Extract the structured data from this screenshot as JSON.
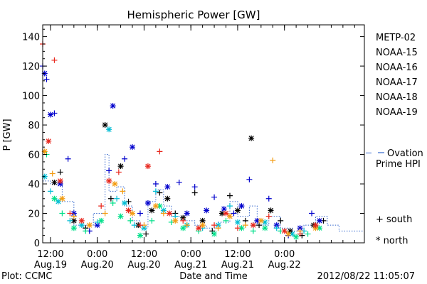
{
  "chart_data": {
    "type": "scatter",
    "title": "Hemispheric Power [GW]",
    "ylabel": "P [GW]",
    "xlabel": "Date and Time",
    "ylim": [
      0,
      148
    ],
    "xlim": [
      "2012-08-19T10:00",
      "2012-08-22T20:30"
    ],
    "yticks": [
      0,
      20,
      40,
      60,
      80,
      100,
      120,
      140
    ],
    "xticks": [
      {
        "time": "2012-08-19T12:00",
        "l1": "12:00",
        "l2": "Aug.19"
      },
      {
        "time": "2012-08-20T00:00",
        "l1": "0:00",
        "l2": "Aug.20"
      },
      {
        "time": "2012-08-20T12:00",
        "l1": "12:00",
        "l2": "Aug.20"
      },
      {
        "time": "2012-08-21T00:00",
        "l1": "0:00",
        "l2": "Aug.21"
      },
      {
        "time": "2012-08-21T12:00",
        "l1": "12:00",
        "l2": "Aug.21"
      },
      {
        "time": "2012-08-22T00:00",
        "l1": "0:00",
        "l2": "Aug.22"
      }
    ],
    "legend_position": "right",
    "series": [
      {
        "name": "METP-02",
        "color": "#000000",
        "points": [
          [
            "2012-08-19T13:00",
            41
          ],
          [
            "2012-08-19T14:30",
            48
          ],
          [
            "2012-08-19T18:00",
            15
          ],
          [
            "2012-08-19T21:00",
            10
          ],
          [
            "2012-08-20T02:00",
            80
          ],
          [
            "2012-08-20T03:30",
            30
          ],
          [
            "2012-08-20T06:00",
            52
          ],
          [
            "2012-08-20T08:00",
            28
          ],
          [
            "2012-08-20T10:30",
            12
          ],
          [
            "2012-08-20T12:30",
            6
          ],
          [
            "2012-08-20T14:00",
            22
          ],
          [
            "2012-08-20T16:00",
            34
          ],
          [
            "2012-08-20T18:00",
            30
          ],
          [
            "2012-08-20T20:00",
            20
          ],
          [
            "2012-08-20T22:00",
            17
          ],
          [
            "2012-08-21T01:00",
            34
          ],
          [
            "2012-08-21T03:00",
            15
          ],
          [
            "2012-08-21T05:30",
            8
          ],
          [
            "2012-08-21T08:00",
            20
          ],
          [
            "2012-08-21T10:00",
            32
          ],
          [
            "2012-08-21T12:00",
            22
          ],
          [
            "2012-08-21T14:00",
            15
          ],
          [
            "2012-08-21T15:30",
            71
          ],
          [
            "2012-08-21T17:30",
            12
          ],
          [
            "2012-08-21T20:30",
            22
          ],
          [
            "2012-08-21T23:00",
            15
          ],
          [
            "2012-08-22T01:30",
            8
          ],
          [
            "2012-08-22T04:30",
            5
          ],
          [
            "2012-08-22T07:30",
            12
          ],
          [
            "2012-08-22T10:00",
            15
          ]
        ]
      },
      {
        "name": "NOAA-15",
        "color": "#0000cc",
        "points": [
          [
            "2012-08-19T10:00",
            120
          ],
          [
            "2012-08-19T10:30",
            115
          ],
          [
            "2012-08-19T11:00",
            111
          ],
          [
            "2012-08-19T12:00",
            87
          ],
          [
            "2012-08-19T13:00",
            88
          ],
          [
            "2012-08-19T14:30",
            40
          ],
          [
            "2012-08-19T16:30",
            57
          ],
          [
            "2012-08-19T18:00",
            20
          ],
          [
            "2012-08-19T22:00",
            8
          ],
          [
            "2012-08-20T00:00",
            12
          ],
          [
            "2012-08-20T03:00",
            49
          ],
          [
            "2012-08-20T04:00",
            93
          ],
          [
            "2012-08-20T07:00",
            57
          ],
          [
            "2012-08-20T09:00",
            65
          ],
          [
            "2012-08-20T11:00",
            20
          ],
          [
            "2012-08-20T13:00",
            27
          ],
          [
            "2012-08-20T15:00",
            40
          ],
          [
            "2012-08-20T18:00",
            38
          ],
          [
            "2012-08-20T21:00",
            41
          ],
          [
            "2012-08-20T23:00",
            20
          ],
          [
            "2012-08-21T01:00",
            38
          ],
          [
            "2012-08-21T04:00",
            22
          ],
          [
            "2012-08-21T06:00",
            31
          ],
          [
            "2012-08-21T08:30",
            23
          ],
          [
            "2012-08-21T11:00",
            20
          ],
          [
            "2012-08-21T13:00",
            25
          ],
          [
            "2012-08-21T15:00",
            43
          ],
          [
            "2012-08-21T17:00",
            15
          ],
          [
            "2012-08-21T20:00",
            30
          ],
          [
            "2012-08-21T22:00",
            12
          ],
          [
            "2012-08-22T01:00",
            5
          ],
          [
            "2012-08-22T04:00",
            10
          ],
          [
            "2012-08-22T07:00",
            20
          ],
          [
            "2012-08-22T09:00",
            15
          ]
        ]
      },
      {
        "name": "NOAA-16",
        "color": "#00bcd4",
        "points": [
          [
            "2012-08-19T10:30",
            45
          ],
          [
            "2012-08-19T12:00",
            35
          ],
          [
            "2012-08-19T14:00",
            28
          ],
          [
            "2012-08-19T17:00",
            15
          ],
          [
            "2012-08-19T20:00",
            12
          ],
          [
            "2012-08-20T00:00",
            14
          ],
          [
            "2012-08-20T03:00",
            77
          ],
          [
            "2012-08-20T05:00",
            30
          ],
          [
            "2012-08-20T07:00",
            27
          ],
          [
            "2012-08-20T09:30",
            12
          ],
          [
            "2012-08-20T12:00",
            10
          ],
          [
            "2012-08-20T15:00",
            35
          ],
          [
            "2012-08-20T17:00",
            22
          ],
          [
            "2012-08-20T20:00",
            18
          ],
          [
            "2012-08-20T23:00",
            12
          ],
          [
            "2012-08-21T03:00",
            10
          ],
          [
            "2012-08-21T07:00",
            12
          ],
          [
            "2012-08-21T10:00",
            25
          ],
          [
            "2012-08-21T12:00",
            14
          ],
          [
            "2012-08-21T16:00",
            12
          ],
          [
            "2012-08-21T19:00",
            14
          ],
          [
            "2012-08-21T22:00",
            10
          ],
          [
            "2012-08-22T02:00",
            6
          ],
          [
            "2012-08-22T05:00",
            8
          ],
          [
            "2012-08-22T08:00",
            12
          ]
        ]
      },
      {
        "name": "NOAA-17",
        "color": "#00e08a",
        "points": [
          [
            "2012-08-19T11:00",
            60
          ],
          [
            "2012-08-19T13:00",
            30
          ],
          [
            "2012-08-19T15:00",
            20
          ],
          [
            "2012-08-19T18:00",
            10
          ],
          [
            "2012-08-19T21:00",
            8
          ],
          [
            "2012-08-20T01:00",
            15
          ],
          [
            "2012-08-20T04:00",
            27
          ],
          [
            "2012-08-20T06:00",
            18
          ],
          [
            "2012-08-20T08:30",
            15
          ],
          [
            "2012-08-20T11:00",
            5
          ],
          [
            "2012-08-20T14:00",
            15
          ],
          [
            "2012-08-20T16:00",
            25
          ],
          [
            "2012-08-20T19:00",
            14
          ],
          [
            "2012-08-20T22:00",
            10
          ],
          [
            "2012-08-21T02:00",
            8
          ],
          [
            "2012-08-21T06:00",
            6
          ],
          [
            "2012-08-21T09:00",
            15
          ],
          [
            "2012-08-21T13:00",
            10
          ],
          [
            "2012-08-21T16:00",
            8
          ],
          [
            "2012-08-21T19:00",
            10
          ],
          [
            "2012-08-21T23:00",
            8
          ],
          [
            "2012-08-22T03:00",
            4
          ],
          [
            "2012-08-22T06:00",
            6
          ],
          [
            "2012-08-22T09:00",
            10
          ]
        ]
      },
      {
        "name": "NOAA-18",
        "color": "#f39c12",
        "points": [
          [
            "2012-08-19T10:30",
            62
          ],
          [
            "2012-08-19T12:30",
            47
          ],
          [
            "2012-08-19T15:00",
            30
          ],
          [
            "2012-08-19T18:00",
            18
          ],
          [
            "2012-08-19T22:00",
            12
          ],
          [
            "2012-08-20T02:00",
            20
          ],
          [
            "2012-08-20T04:30",
            40
          ],
          [
            "2012-08-20T06:30",
            35
          ],
          [
            "2012-08-20T09:00",
            20
          ],
          [
            "2012-08-20T12:00",
            12
          ],
          [
            "2012-08-20T15:00",
            25
          ],
          [
            "2012-08-20T17:00",
            20
          ],
          [
            "2012-08-20T20:00",
            15
          ],
          [
            "2012-08-20T23:00",
            12
          ],
          [
            "2012-08-21T03:00",
            12
          ],
          [
            "2012-08-21T07:00",
            10
          ],
          [
            "2012-08-21T10:00",
            18
          ],
          [
            "2012-08-21T14:00",
            12
          ],
          [
            "2012-08-21T18:00",
            15
          ],
          [
            "2012-08-21T21:00",
            56
          ],
          [
            "2012-08-22T01:00",
            6
          ],
          [
            "2012-08-22T04:00",
            8
          ],
          [
            "2012-08-22T08:00",
            10
          ]
        ]
      },
      {
        "name": "NOAA-19",
        "color": "#e8261c",
        "points": [
          [
            "2012-08-19T10:00",
            135
          ],
          [
            "2012-08-19T11:30",
            69
          ],
          [
            "2012-08-19T13:00",
            124
          ],
          [
            "2012-08-19T14:30",
            42
          ],
          [
            "2012-08-19T17:00",
            20
          ],
          [
            "2012-08-19T20:00",
            15
          ],
          [
            "2012-08-20T01:00",
            25
          ],
          [
            "2012-08-20T03:00",
            42
          ],
          [
            "2012-08-20T05:30",
            48
          ],
          [
            "2012-08-20T08:00",
            22
          ],
          [
            "2012-08-20T11:00",
            12
          ],
          [
            "2012-08-20T13:00",
            52
          ],
          [
            "2012-08-20T16:00",
            62
          ],
          [
            "2012-08-20T18:30",
            20
          ],
          [
            "2012-08-20T22:00",
            15
          ],
          [
            "2012-08-21T02:00",
            10
          ],
          [
            "2012-08-21T06:00",
            12
          ],
          [
            "2012-08-21T09:00",
            20
          ],
          [
            "2012-08-21T12:00",
            10
          ],
          [
            "2012-08-21T16:00",
            12
          ],
          [
            "2012-08-21T20:00",
            18
          ],
          [
            "2012-08-22T00:00",
            8
          ],
          [
            "2012-08-22T04:00",
            6
          ],
          [
            "2012-08-22T08:00",
            12
          ]
        ]
      }
    ],
    "ovation": {
      "label_line1": "Ovation",
      "label_line2": "Prime HPI",
      "color": "#3366cc",
      "value_at_axis": 61,
      "steps": [
        [
          "2012-08-19T10:00",
          42
        ],
        [
          "2012-08-19T12:00",
          40
        ],
        [
          "2012-08-19T15:00",
          28
        ],
        [
          "2012-08-19T18:00",
          12
        ],
        [
          "2012-08-19T21:00",
          12
        ],
        [
          "2012-08-19T23:00",
          20
        ],
        [
          "2012-08-20T02:00",
          60
        ],
        [
          "2012-08-20T03:00",
          35
        ],
        [
          "2012-08-20T05:00",
          38
        ],
        [
          "2012-08-20T07:00",
          25
        ],
        [
          "2012-08-20T09:00",
          15
        ],
        [
          "2012-08-20T11:00",
          10
        ],
        [
          "2012-08-20T13:00",
          28
        ],
        [
          "2012-08-20T15:00",
          36
        ],
        [
          "2012-08-20T17:00",
          25
        ],
        [
          "2012-08-20T19:00",
          18
        ],
        [
          "2012-08-20T22:00",
          15
        ],
        [
          "2012-08-21T01:00",
          12
        ],
        [
          "2012-08-21T04:00",
          10
        ],
        [
          "2012-08-21T07:00",
          14
        ],
        [
          "2012-08-21T10:00",
          28
        ],
        [
          "2012-08-21T12:00",
          18
        ],
        [
          "2012-08-21T15:00",
          25
        ],
        [
          "2012-08-21T17:00",
          12
        ],
        [
          "2012-08-21T20:00",
          18
        ],
        [
          "2012-08-21T23:00",
          10
        ],
        [
          "2012-08-22T02:00",
          8
        ],
        [
          "2012-08-22T05:00",
          12
        ],
        [
          "2012-08-22T08:00",
          18
        ],
        [
          "2012-08-22T11:00",
          12
        ],
        [
          "2012-08-22T14:00",
          8
        ],
        [
          "2012-08-22T20:30",
          8
        ]
      ]
    },
    "marker_legend": {
      "south": "+ south",
      "north": "* north"
    }
  },
  "footer": {
    "plot_credit": "Plot: CCMC",
    "timestamp": "2012/08/22 11:05:07"
  }
}
